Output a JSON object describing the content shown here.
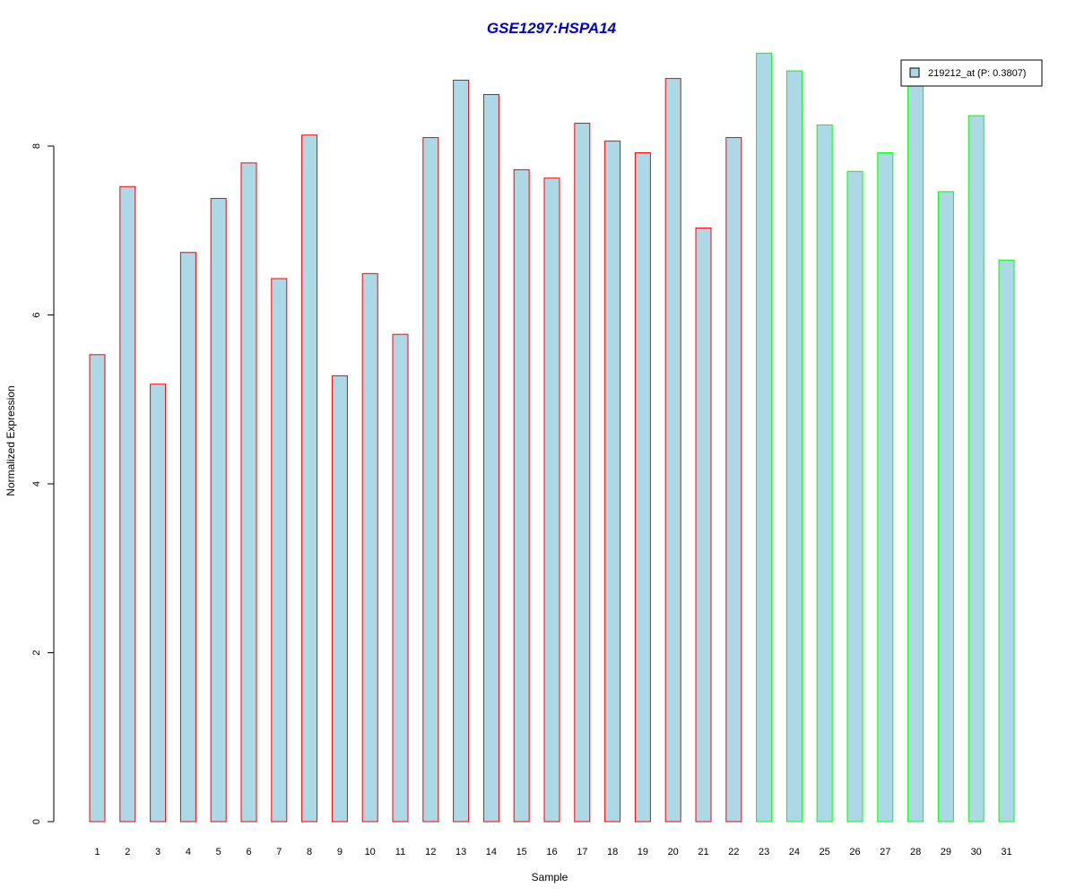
{
  "colors": {
    "title": "#0000cc",
    "bar_fill": "#add8e6",
    "group1_border": "#ff0000",
    "group2_border": "#00ff00",
    "axis": "#000000"
  },
  "chart_data": {
    "type": "bar",
    "title": "GSE1297:HSPA14",
    "xlabel": "Sample",
    "ylabel": "Normalized Expression",
    "ylim": [
      0,
      9.1
    ],
    "yticks": [
      0,
      2,
      4,
      6,
      8
    ],
    "grid": false,
    "legend_position": "top-right",
    "legend": [
      {
        "label": "219212_at (P: 0.3807)",
        "color": "#add8e6"
      }
    ],
    "categories": [
      "1",
      "2",
      "3",
      "4",
      "5",
      "6",
      "7",
      "8",
      "9",
      "10",
      "11",
      "12",
      "13",
      "14",
      "15",
      "16",
      "17",
      "18",
      "19",
      "20",
      "21",
      "22",
      "23",
      "24",
      "25",
      "26",
      "27",
      "28",
      "29",
      "30",
      "31"
    ],
    "series": [
      {
        "values": [
          5.53,
          7.52,
          5.18,
          6.74,
          7.38,
          7.8,
          6.43,
          8.13,
          5.28,
          6.49,
          5.77,
          8.1,
          8.78,
          8.61,
          7.72,
          7.62,
          8.27,
          8.06,
          7.92,
          8.8,
          7.03,
          8.1,
          9.1,
          8.89,
          8.25,
          7.7,
          7.92,
          8.85,
          7.46,
          8.36,
          6.65
        ]
      }
    ],
    "groups": [
      "1",
      "1",
      "1",
      "1",
      "1",
      "1",
      "1",
      "1",
      "1",
      "1",
      "1",
      "1",
      "1",
      "1",
      "1",
      "1",
      "1",
      "1",
      "1",
      "1",
      "1",
      "1",
      "2",
      "2",
      "2",
      "2",
      "2",
      "2",
      "2",
      "2",
      "2"
    ]
  }
}
